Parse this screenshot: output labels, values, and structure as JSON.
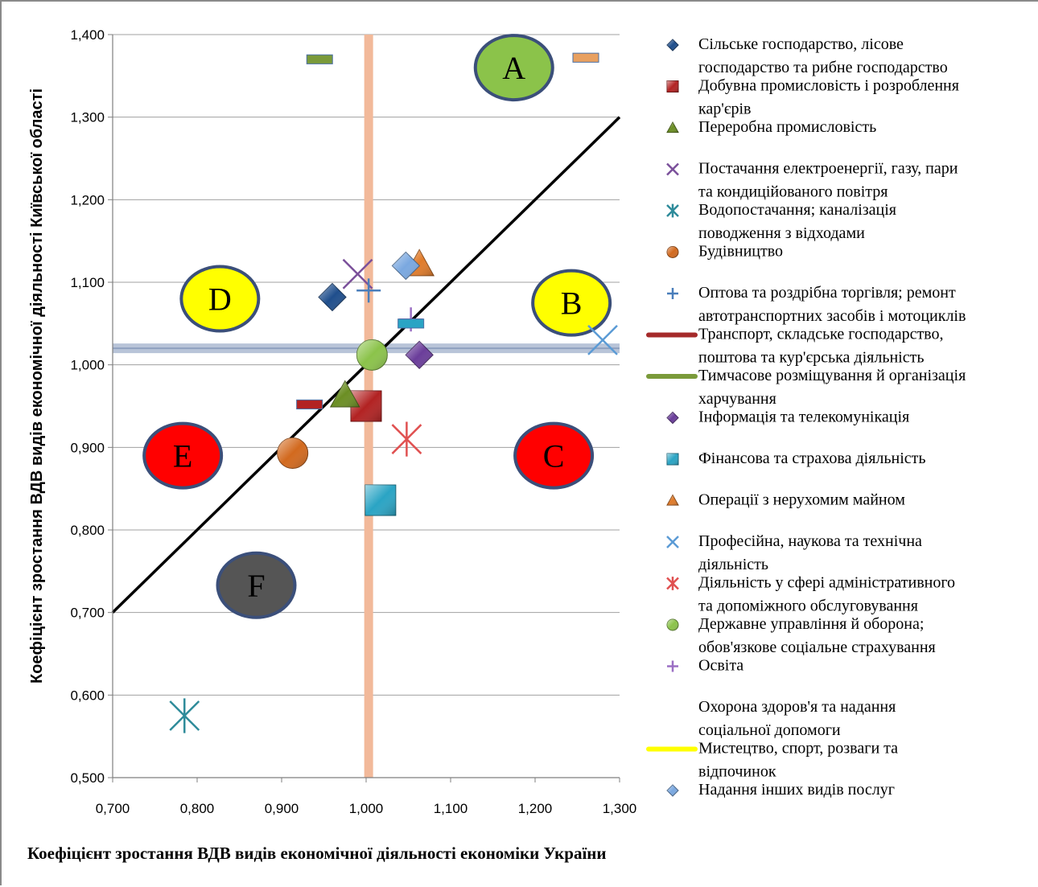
{
  "chart_data": {
    "type": "scatter",
    "xlabel": "Коефіцієнт зростання ВДВ видів економічної діяльності економіки України",
    "ylabel": "Коефіцієнт зростання ВДВ видів економічної діяльності Київської області",
    "xlim": [
      0.7,
      1.3
    ],
    "ylim": [
      0.5,
      1.4
    ],
    "x_ticks": [
      "0,700",
      "0,800",
      "0,900",
      "1,000",
      "1,100",
      "1,200",
      "1,300"
    ],
    "y_ticks": [
      "0,500",
      "0,600",
      "0,700",
      "0,800",
      "0,900",
      "1,000",
      "1,100",
      "1,200",
      "1,300",
      "1,400"
    ],
    "grid": "horizontal",
    "legend_position": "right",
    "diagonal_line": {
      "x": [
        0.7,
        1.3
      ],
      "y": [
        0.7,
        1.3
      ],
      "color": "#000000"
    },
    "vertical_band": {
      "x": 1.003,
      "color": "#f2b99a"
    },
    "horizontal_band": {
      "y": 1.02,
      "color": "#b8c4d8"
    },
    "zones": [
      {
        "label": "A",
        "x": 1.175,
        "y": 1.36,
        "fill": "#8bc34a"
      },
      {
        "label": "B",
        "x": 1.243,
        "y": 1.075,
        "fill": "#ffff00"
      },
      {
        "label": "C",
        "x": 1.222,
        "y": 0.89,
        "fill": "#ff0000"
      },
      {
        "label": "D",
        "x": 0.827,
        "y": 1.08,
        "fill": "#ffff00"
      },
      {
        "label": "E",
        "x": 0.783,
        "y": 0.89,
        "fill": "#ff0000"
      },
      {
        "label": "F",
        "x": 0.87,
        "y": 0.733,
        "fill": "#555555"
      }
    ],
    "series": [
      {
        "name": "Сільське господарство, лісове господарство та рибне господарство",
        "legend_lines": [
          "Сільське господарство, лісове",
          "господарство та рибне господарство"
        ],
        "marker": "diamond",
        "color": "#1f4e8c",
        "x": 0.96,
        "y": 1.082
      },
      {
        "name": "Добувна промисловість і розроблення кар'єрів",
        "legend_lines": [
          "Добувна промисловість і розроблення",
          "кар'єрів"
        ],
        "marker": "square",
        "color": "#b22222",
        "x": 1.0,
        "y": 0.95
      },
      {
        "name": "Переробна промисловість",
        "legend_lines": [
          "Переробна промисловість"
        ],
        "marker": "triangle",
        "color": "#6b8e23",
        "x": 0.975,
        "y": 0.963
      },
      {
        "name": "Постачання електроенергії, газу, пари та кондиційованого повітря",
        "legend_lines": [
          "Постачання електроенергії, газу, пари",
          "та кондиційованого повітря"
        ],
        "marker": "x",
        "color": "#7a4f9a",
        "x": 0.99,
        "y": 1.11
      },
      {
        "name": "Водопостачання; каналізація поводження з відходами",
        "legend_lines": [
          "Водопостачання; каналізація",
          "поводження з відходами"
        ],
        "marker": "asterisk",
        "color": "#2e8b9a",
        "x": 0.785,
        "y": 0.575
      },
      {
        "name": "Будівництво",
        "legend_lines": [
          "Будівництво"
        ],
        "marker": "circle",
        "color": "#d2691e",
        "x": 0.913,
        "y": 0.893
      },
      {
        "name": "Оптова та роздрібна торгівля; ремонт автотранспортних засобів і мотоциклів",
        "legend_lines": [
          "Оптова та роздрібна торгівля; ремонт",
          "автотранспортних засобів і мотоциклів"
        ],
        "marker": "plus",
        "color": "#4a7ebb",
        "x": 1.003,
        "y": 1.09
      },
      {
        "name": "Транспорт, складське господарство, поштова та кур'єрська діяльність",
        "legend_lines": [
          "Транспорт, складське господарство,",
          "поштова та кур'єрська діяльність"
        ],
        "marker": "dash",
        "color": "#b22222",
        "x": 0.933,
        "y": 0.952
      },
      {
        "name": "Тимчасове розміщування й організація харчування",
        "legend_lines": [
          "Тимчасове розміщування й організація",
          "харчування"
        ],
        "marker": "dash",
        "color": "#7a9a3a",
        "x": 0.945,
        "y": 1.37
      },
      {
        "name": "Інформація та телекомунікація",
        "legend_lines": [
          "Інформація та телекомунікація"
        ],
        "marker": "diamond",
        "color": "#6a3d9a",
        "x": 1.063,
        "y": 1.012
      },
      {
        "name": "Фінансова та страхова діяльність",
        "legend_lines": [
          "Фінансова та страхова діяльність"
        ],
        "marker": "square",
        "color": "#2aa4c4",
        "x": 1.017,
        "y": 0.836
      },
      {
        "name": "Операції з нерухомим майном",
        "legend_lines": [
          "Операції з нерухомим майном"
        ],
        "marker": "triangle",
        "color": "#e07b2a",
        "x": 1.063,
        "y": 1.122
      },
      {
        "name": "Професійна, наукова та технічна діяльність",
        "legend_lines": [
          "Професійна, наукова та технічна",
          "діяльність"
        ],
        "marker": "x",
        "color": "#5b9bd5",
        "x": 1.28,
        "y": 1.03
      },
      {
        "name": "Діяльність у сфері адміністративного та допоміжного обслуговування",
        "legend_lines": [
          "Діяльність у сфері адміністративного",
          "та допоміжного обслуговування"
        ],
        "marker": "asterisk",
        "color": "#e05050",
        "x": 1.048,
        "y": 0.91
      },
      {
        "name": "Державне управління й оборона; обов'язкове соціальне страхування",
        "legend_lines": [
          "Державне управління й оборона;",
          "обов'язкове соціальне страхування"
        ],
        "marker": "circle",
        "color": "#8bc34a",
        "x": 1.007,
        "y": 1.012
      },
      {
        "name": "Освіта",
        "legend_lines": [
          "Освіта"
        ],
        "marker": "plus",
        "color": "#9b6fc4",
        "x": 1.053,
        "y": 1.055
      },
      {
        "name": "Охорона здоров'я та надання соціальної допомоги",
        "legend_lines": [
          "Охорона здоров'я та надання",
          "соціальної допомоги"
        ],
        "marker": "dash",
        "color": "#2aa4c4",
        "x": 1.053,
        "y": 1.05
      },
      {
        "name": "Мистецтво, спорт, розваги та відпочинок",
        "legend_lines": [
          "Мистецтво, спорт, розваги та",
          "відпочинок"
        ],
        "marker": "dash",
        "color": "#e8a060",
        "x": 1.26,
        "y": 1.372
      },
      {
        "name": "Надання інших видів послуг",
        "legend_lines": [
          "Надання інших видів послуг"
        ],
        "marker": "diamond",
        "color": "#7aa8e0",
        "x": 1.047,
        "y": 1.12
      }
    ]
  }
}
